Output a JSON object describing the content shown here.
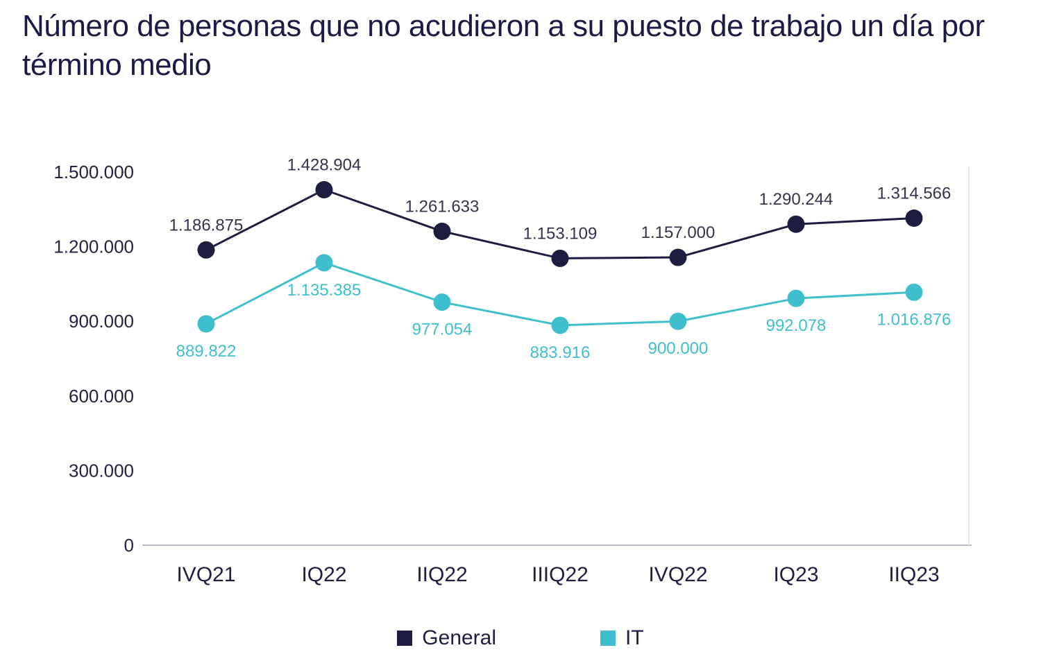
{
  "chart_data": {
    "type": "line",
    "title": "Número de personas que no acudieron a su puesto de trabajo un día por término medio",
    "categories": [
      "IVQ21",
      "IQ22",
      "IIQ22",
      "IIIQ22",
      "IVQ22",
      "IQ23",
      "IIQ23"
    ],
    "series": [
      {
        "name": "General",
        "color": "#1d1d42",
        "label_color": "#33334d",
        "values": [
          1186875,
          1428904,
          1261633,
          1153109,
          1157000,
          1290244,
          1314566
        ],
        "labels": [
          "1.186.875",
          "1.428.904",
          "1.261.633",
          "1.153.109",
          "1.157.000",
          "1.290.244",
          "1.314.566"
        ]
      },
      {
        "name": "IT",
        "color": "#3fbfce",
        "label_color": "#3fbfce",
        "values": [
          889822,
          1135385,
          977054,
          883916,
          900000,
          992078,
          1016876
        ],
        "labels": [
          "889.822",
          "1.135.385",
          "977.054",
          "883.916",
          "900.000",
          "992.078",
          "1.016.876"
        ]
      }
    ],
    "yticks": [
      {
        "label": "1.500.000",
        "value": 1500000
      },
      {
        "label": "1.200.000",
        "value": 1200000
      },
      {
        "label": "900.000",
        "value": 900000
      },
      {
        "label": "600.000",
        "value": 600000
      },
      {
        "label": "300.000",
        "value": 300000
      },
      {
        "label": "0",
        "value": 0
      }
    ],
    "ylim": [
      0,
      1500000
    ],
    "grid": false,
    "legend_position": "bottom",
    "colors": {
      "axis": "#b3b8c4",
      "axis_faint": "#e4e6eb",
      "title_text": "#1b1b46"
    }
  }
}
